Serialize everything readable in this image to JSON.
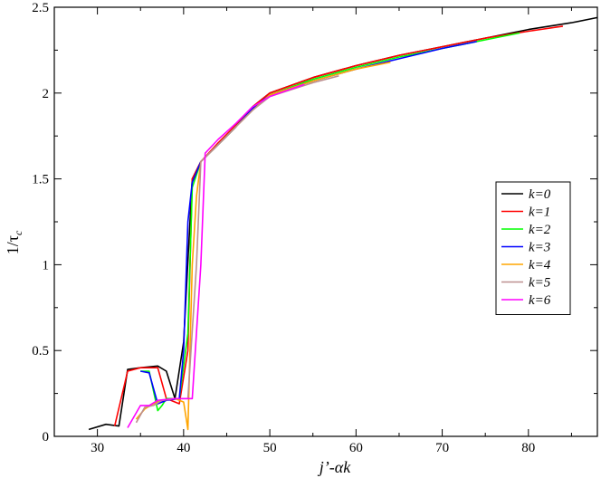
{
  "chart_data": {
    "type": "line",
    "xlabel": "j’-αk",
    "ylabel": "1/τ",
    "ylabel_sub": "c",
    "xlim": [
      25,
      88
    ],
    "ylim": [
      0,
      2.5
    ],
    "xticks": [
      30,
      40,
      50,
      60,
      70,
      80
    ],
    "yticks": [
      0,
      0.5,
      1,
      1.5,
      2,
      2.5
    ],
    "grid": false,
    "legend": "right",
    "series": [
      {
        "name": "k=0",
        "color": "#000000",
        "points": [
          [
            29,
            0.04
          ],
          [
            31,
            0.07
          ],
          [
            32.5,
            0.06
          ],
          [
            33.5,
            0.39
          ],
          [
            35,
            0.4
          ],
          [
            37,
            0.41
          ],
          [
            38,
            0.38
          ],
          [
            39,
            0.22
          ],
          [
            40,
            0.55
          ],
          [
            41,
            1.5
          ],
          [
            42,
            1.6
          ],
          [
            44,
            1.7
          ],
          [
            46,
            1.8
          ],
          [
            48,
            1.92
          ],
          [
            50,
            2.0
          ],
          [
            55,
            2.09
          ],
          [
            60,
            2.16
          ],
          [
            65,
            2.22
          ],
          [
            70,
            2.27
          ],
          [
            75,
            2.32
          ],
          [
            80,
            2.37
          ],
          [
            85,
            2.41
          ],
          [
            88,
            2.44
          ]
        ]
      },
      {
        "name": "k=1",
        "color": "#ff0000",
        "points": [
          [
            32,
            0.06
          ],
          [
            33.5,
            0.38
          ],
          [
            35,
            0.4
          ],
          [
            37,
            0.4
          ],
          [
            38,
            0.22
          ],
          [
            39.5,
            0.19
          ],
          [
            40.5,
            0.5
          ],
          [
            41,
            1.5
          ],
          [
            42,
            1.6
          ],
          [
            44,
            1.71
          ],
          [
            46,
            1.81
          ],
          [
            48,
            1.92
          ],
          [
            50,
            2.0
          ],
          [
            55,
            2.09
          ],
          [
            60,
            2.16
          ],
          [
            65,
            2.22
          ],
          [
            70,
            2.27
          ],
          [
            75,
            2.32
          ],
          [
            80,
            2.36
          ],
          [
            84,
            2.39
          ]
        ]
      },
      {
        "name": "k=2",
        "color": "#00ff00",
        "points": [
          [
            35,
            0.38
          ],
          [
            36,
            0.38
          ],
          [
            37,
            0.15
          ],
          [
            37.5,
            0.18
          ],
          [
            38,
            0.22
          ],
          [
            39.5,
            0.22
          ],
          [
            40.5,
            0.6
          ],
          [
            41,
            1.45
          ],
          [
            42,
            1.6
          ],
          [
            44,
            1.7
          ],
          [
            46,
            1.8
          ],
          [
            48,
            1.91
          ],
          [
            50,
            1.99
          ],
          [
            55,
            2.08
          ],
          [
            60,
            2.15
          ],
          [
            65,
            2.21
          ],
          [
            70,
            2.26
          ],
          [
            75,
            2.31
          ],
          [
            79,
            2.35
          ]
        ]
      },
      {
        "name": "k=3",
        "color": "#0000ff",
        "points": [
          [
            35,
            0.38
          ],
          [
            36,
            0.37
          ],
          [
            37,
            0.19
          ],
          [
            38,
            0.21
          ],
          [
            39.5,
            0.22
          ],
          [
            40,
            0.5
          ],
          [
            40.5,
            1.25
          ],
          [
            41,
            1.48
          ],
          [
            42,
            1.6
          ],
          [
            44,
            1.7
          ],
          [
            46,
            1.8
          ],
          [
            48,
            1.91
          ],
          [
            50,
            1.99
          ],
          [
            55,
            2.07
          ],
          [
            60,
            2.14
          ],
          [
            65,
            2.2
          ],
          [
            70,
            2.26
          ],
          [
            74,
            2.3
          ]
        ]
      },
      {
        "name": "k=4",
        "color": "#ffa500",
        "points": [
          [
            34.5,
            0.1
          ],
          [
            35.5,
            0.16
          ],
          [
            36.5,
            0.19
          ],
          [
            37.5,
            0.21
          ],
          [
            39,
            0.22
          ],
          [
            40,
            0.2
          ],
          [
            40.5,
            0.04
          ],
          [
            41,
            1.0
          ],
          [
            41.5,
            1.4
          ],
          [
            42,
            1.6
          ],
          [
            44,
            1.7
          ],
          [
            46,
            1.8
          ],
          [
            48,
            1.9
          ],
          [
            50,
            1.99
          ],
          [
            55,
            2.07
          ],
          [
            60,
            2.14
          ],
          [
            64,
            2.18
          ]
        ]
      },
      {
        "name": "k=5",
        "color": "#bc8f8f",
        "points": [
          [
            34.5,
            0.08
          ],
          [
            35.5,
            0.17
          ],
          [
            36.5,
            0.18
          ],
          [
            37.5,
            0.21
          ],
          [
            39,
            0.22
          ],
          [
            40.5,
            0.22
          ],
          [
            41.5,
            1.0
          ],
          [
            42,
            1.6
          ],
          [
            44,
            1.7
          ],
          [
            46,
            1.8
          ],
          [
            48,
            1.9
          ],
          [
            50,
            1.98
          ],
          [
            55,
            2.06
          ],
          [
            58,
            2.1
          ]
        ]
      },
      {
        "name": "k=6",
        "color": "#ff00ff",
        "points": [
          [
            33.5,
            0.05
          ],
          [
            35,
            0.18
          ],
          [
            36,
            0.18
          ],
          [
            37,
            0.21
          ],
          [
            39,
            0.22
          ],
          [
            40.5,
            0.22
          ],
          [
            41,
            0.22
          ],
          [
            42,
            1.0
          ],
          [
            42.5,
            1.65
          ],
          [
            44,
            1.73
          ],
          [
            46,
            1.82
          ],
          [
            48,
            1.92
          ],
          [
            50,
            1.98
          ],
          [
            54,
            2.05
          ]
        ]
      }
    ]
  }
}
